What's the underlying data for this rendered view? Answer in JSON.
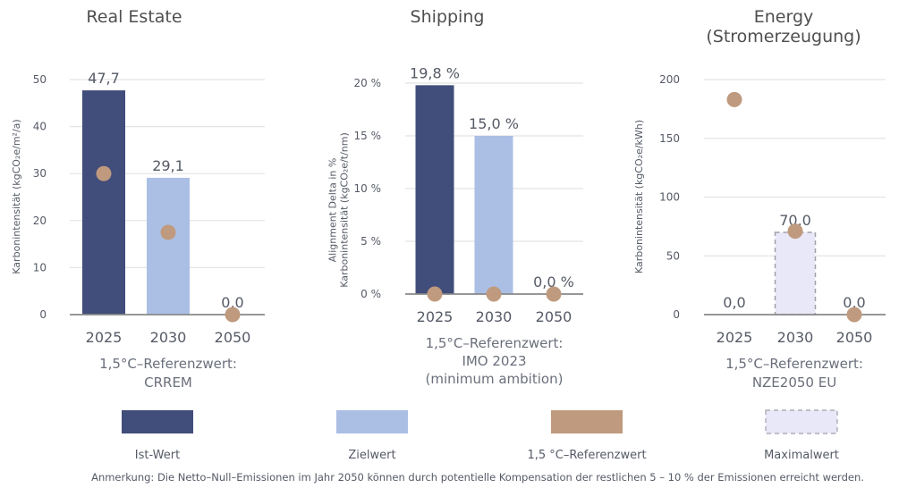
{
  "colors": {
    "ist": "#414d7a",
    "ziel": "#abbfe5",
    "referenz": "#bf9a7e",
    "maximal_fill": "#e9e8f8",
    "maximal_border": "#a0a0a8",
    "grid": "#e4e4e4",
    "axis": "#888888"
  },
  "chart_data": [
    {
      "type": "bar",
      "title": "Real Estate",
      "ylabel": "Karbonintensität (kgCO₂e/m²/a)",
      "categories": [
        "2025",
        "2030",
        "2050"
      ],
      "ylim": [
        0,
        50
      ],
      "yticks": [
        0,
        10,
        20,
        30,
        40,
        50
      ],
      "ytick_labels": [
        "0",
        "10",
        "20",
        "30",
        "40",
        "50"
      ],
      "grid": true,
      "series": [
        {
          "name": "Ist-Wert",
          "kind": "bar",
          "values": [
            47.7,
            null,
            null
          ]
        },
        {
          "name": "Zielwert",
          "kind": "bar",
          "values": [
            null,
            29.1,
            null
          ]
        },
        {
          "name": "1,5 °C-Referenzwert",
          "kind": "dot",
          "values": [
            30.0,
            17.5,
            0.0
          ]
        }
      ],
      "data_labels": [
        "47,7",
        "29,1",
        "0,0"
      ],
      "label_values": [
        47.7,
        29.1,
        0.0
      ],
      "reference_text": [
        "1,5°C–Referenzwert:",
        "CRREM"
      ]
    },
    {
      "type": "bar",
      "title": "Shipping",
      "ylabel": [
        "Alignment Delta in %",
        "Karbonintensität (kgCO₂e/t/nm)"
      ],
      "categories": [
        "2025",
        "2030",
        "2050"
      ],
      "ylim": [
        0,
        20
      ],
      "yticks": [
        0,
        5,
        10,
        15,
        20
      ],
      "ytick_labels": [
        "0 %",
        "5 %",
        "10 %",
        "15 %",
        "20 %"
      ],
      "grid": true,
      "series": [
        {
          "name": "Ist-Wert",
          "kind": "bar",
          "values": [
            19.8,
            null,
            null
          ]
        },
        {
          "name": "Zielwert",
          "kind": "bar",
          "values": [
            null,
            15.0,
            null
          ]
        },
        {
          "name": "1,5 °C-Referenzwert",
          "kind": "dot",
          "values": [
            0.0,
            0.0,
            0.0
          ]
        }
      ],
      "data_labels": [
        "19,8 %",
        "15,0 %",
        "0,0 %"
      ],
      "label_values": [
        19.8,
        15.0,
        0.0
      ],
      "reference_text": [
        "1,5°C–Referenzwert:",
        "IMO 2023",
        "(minimum ambition)"
      ]
    },
    {
      "type": "bar",
      "title": [
        "Energy",
        "(Stromerzeugung)"
      ],
      "ylabel": "Karbonintensität (kgCO₂e/kWh)",
      "categories": [
        "2025",
        "2030",
        "2050"
      ],
      "ylim": [
        0,
        200
      ],
      "yticks": [
        0,
        50,
        100,
        150,
        200
      ],
      "ytick_labels": [
        "0",
        "50",
        "100",
        "150",
        "200"
      ],
      "grid": true,
      "series": [
        {
          "name": "Ist-Wert",
          "kind": "bar",
          "values": [
            0.0,
            null,
            null
          ]
        },
        {
          "name": "Maximalwert",
          "kind": "bar-dashed",
          "values": [
            null,
            70.0,
            null
          ]
        },
        {
          "name": "1,5 °C-Referenzwert",
          "kind": "dot",
          "values": [
            183,
            71,
            0.0
          ]
        }
      ],
      "data_labels": [
        "0,0",
        "70,0",
        "0,0"
      ],
      "label_values": [
        0.0,
        70.0,
        0.0
      ],
      "reference_text": [
        "1,5°C–Referenzwert:",
        "NZE2050 EU"
      ]
    }
  ],
  "legend": {
    "placement": "bottom",
    "items": [
      {
        "label": "Ist-Wert",
        "style": "ist"
      },
      {
        "label": "Zielwert",
        "style": "ziel"
      },
      {
        "label": "1,5 °C–Referenzwert",
        "style": "referenz"
      },
      {
        "label": "Maximalwert",
        "style": "maximal"
      }
    ]
  },
  "note": "Anmerkung: Die Netto–Null–Emissionen im Jahr 2050 können durch potentielle Kompensation der restlichen 5 – 10 % der Emissionen erreicht werden."
}
